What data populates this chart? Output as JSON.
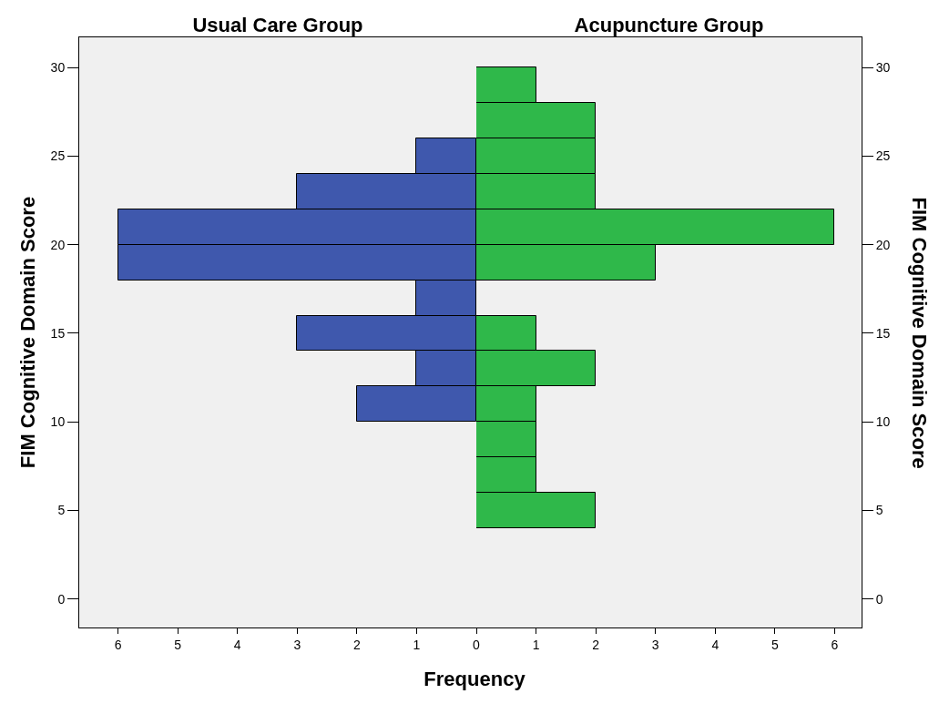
{
  "chart_data": [
    {
      "type": "histogram",
      "title": "Usual Care Group",
      "ylabel": "FIM Cognitive Domain Score",
      "xlabel": "Frequency",
      "orientation": "horizontal",
      "bins": [
        4,
        6,
        8,
        10,
        12,
        14,
        16,
        18,
        20,
        22,
        24,
        26,
        28,
        30
      ],
      "values": [
        0,
        0,
        0,
        2,
        1,
        3,
        1,
        6,
        6,
        3,
        1,
        0,
        0
      ],
      "color": "#3f58ad",
      "xlim": [
        6.65,
        0
      ],
      "xticks": [
        0,
        1,
        2,
        3,
        4,
        5,
        6
      ],
      "ylim": [
        -1.6,
        31.7
      ],
      "yticks": [
        0,
        5,
        10,
        15,
        20,
        25,
        30
      ]
    },
    {
      "type": "histogram",
      "title": "Acupuncture Group",
      "ylabel": "FIM Cognitive Domain Score",
      "orientation": "horizontal",
      "bins": [
        4,
        6,
        8,
        10,
        12,
        14,
        16,
        18,
        20,
        22,
        24,
        26,
        28,
        30
      ],
      "values": [
        2,
        1,
        1,
        1,
        2,
        1,
        0,
        3,
        6,
        2,
        2,
        2,
        1
      ],
      "color": "#2fb84a",
      "xlim": [
        0,
        6.45
      ],
      "xticks": [
        1,
        2,
        3,
        4,
        5,
        6
      ],
      "ylim": [
        -1.6,
        31.7
      ],
      "yticks": [
        0,
        5,
        10,
        15,
        20,
        25,
        30
      ]
    }
  ]
}
